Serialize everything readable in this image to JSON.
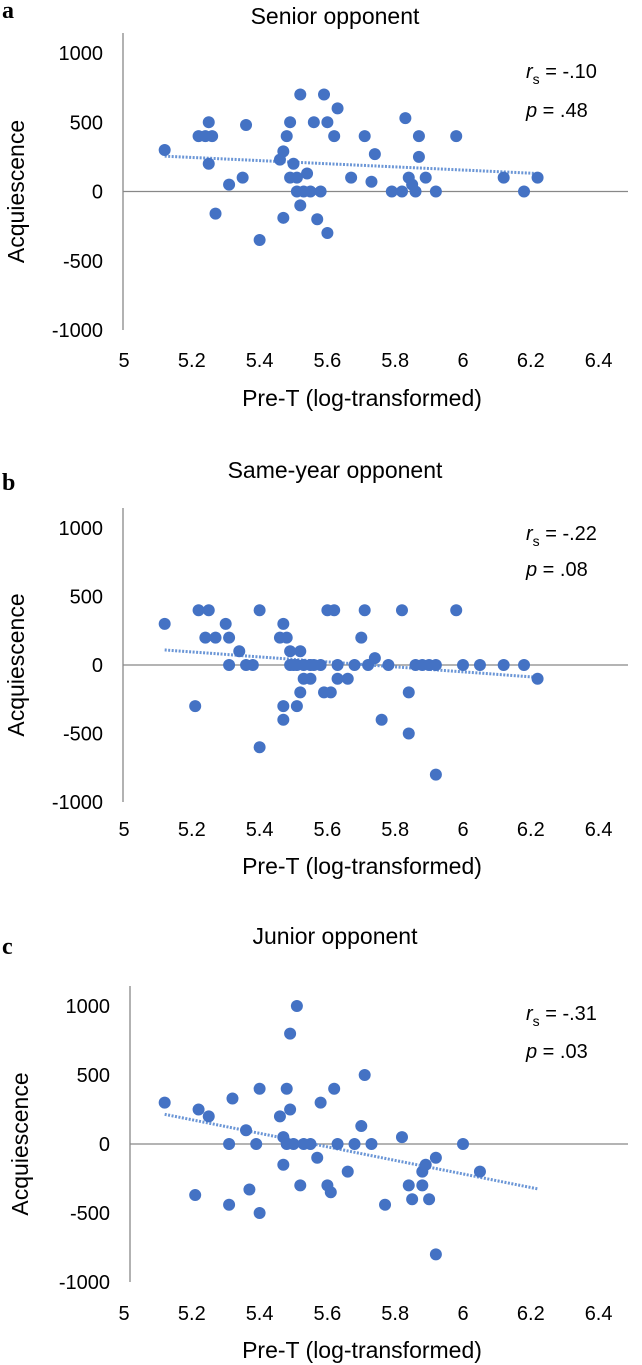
{
  "chart_data": [
    {
      "type": "scatter",
      "panel_label": "a",
      "title": "Senior opponent",
      "xlabel": "Pre-T (log-transformed)",
      "ylabel": "Acquiescence",
      "xlim": [
        5,
        6.5
      ],
      "ylim": [
        -1000,
        1000
      ],
      "xticks": [
        "5",
        "5.2",
        "5.4",
        "5.6",
        "5.8",
        "6",
        "6.2",
        "6.4"
      ],
      "yticks": [
        "1000",
        "500",
        "0",
        "-500",
        "-1000"
      ],
      "stat_r_symbol": "r",
      "stat_r_sub": "s",
      "stat_r_value": " = -.10",
      "stat_p_symbol": "p",
      "stat_p_value": " = .48",
      "trendline": {
        "x": [
          5.12,
          6.22
        ],
        "y": [
          255,
          130
        ]
      },
      "points": [
        [
          5.12,
          300
        ],
        [
          5.22,
          400
        ],
        [
          5.24,
          400
        ],
        [
          5.25,
          500
        ],
        [
          5.26,
          400
        ],
        [
          5.25,
          200
        ],
        [
          5.27,
          -160
        ],
        [
          5.31,
          50
        ],
        [
          5.35,
          100
        ],
        [
          5.36,
          480
        ],
        [
          5.4,
          -350
        ],
        [
          5.46,
          230
        ],
        [
          5.47,
          290
        ],
        [
          5.47,
          -190
        ],
        [
          5.48,
          400
        ],
        [
          5.49,
          500
        ],
        [
          5.49,
          100
        ],
        [
          5.5,
          200
        ],
        [
          5.51,
          100
        ],
        [
          5.51,
          0
        ],
        [
          5.52,
          -100
        ],
        [
          5.53,
          0
        ],
        [
          5.52,
          700
        ],
        [
          5.54,
          130
        ],
        [
          5.55,
          0
        ],
        [
          5.56,
          500
        ],
        [
          5.57,
          -200
        ],
        [
          5.58,
          0
        ],
        [
          5.59,
          700
        ],
        [
          5.6,
          500
        ],
        [
          5.6,
          -300
        ],
        [
          5.62,
          400
        ],
        [
          5.63,
          600
        ],
        [
          5.67,
          100
        ],
        [
          5.71,
          400
        ],
        [
          5.73,
          70
        ],
        [
          5.74,
          270
        ],
        [
          5.79,
          0
        ],
        [
          5.82,
          0
        ],
        [
          5.83,
          530
        ],
        [
          5.84,
          100
        ],
        [
          5.85,
          50
        ],
        [
          5.86,
          0
        ],
        [
          5.87,
          400
        ],
        [
          5.87,
          250
        ],
        [
          5.89,
          100
        ],
        [
          5.92,
          0
        ],
        [
          5.98,
          400
        ],
        [
          6.12,
          100
        ],
        [
          6.18,
          0
        ],
        [
          6.22,
          100
        ]
      ]
    },
    {
      "type": "scatter",
      "panel_label": "b",
      "title": "Same-year opponent",
      "xlabel": "Pre-T (log-transformed)",
      "ylabel": "Acquiescence",
      "xlim": [
        5,
        6.5
      ],
      "ylim": [
        -1000,
        1000
      ],
      "xticks": [
        "5",
        "5.2",
        "5.4",
        "5.6",
        "5.8",
        "6",
        "6.2",
        "6.4"
      ],
      "yticks": [
        "1000",
        "500",
        "0",
        "-500",
        "-1000"
      ],
      "stat_r_symbol": "r",
      "stat_r_sub": "s",
      "stat_r_value": " = -.22",
      "stat_p_symbol": "p",
      "stat_p_value": " = .08",
      "trendline": {
        "x": [
          5.12,
          6.22
        ],
        "y": [
          110,
          -90
        ]
      },
      "points": [
        [
          5.12,
          300
        ],
        [
          5.21,
          -300
        ],
        [
          5.22,
          400
        ],
        [
          5.24,
          200
        ],
        [
          5.25,
          400
        ],
        [
          5.27,
          200
        ],
        [
          5.3,
          300
        ],
        [
          5.31,
          0
        ],
        [
          5.31,
          200
        ],
        [
          5.34,
          100
        ],
        [
          5.36,
          0
        ],
        [
          5.38,
          0
        ],
        [
          5.4,
          400
        ],
        [
          5.4,
          -600
        ],
        [
          5.46,
          200
        ],
        [
          5.47,
          300
        ],
        [
          5.47,
          -300
        ],
        [
          5.47,
          -400
        ],
        [
          5.48,
          200
        ],
        [
          5.49,
          0
        ],
        [
          5.49,
          100
        ],
        [
          5.5,
          0
        ],
        [
          5.51,
          0
        ],
        [
          5.51,
          -300
        ],
        [
          5.52,
          100
        ],
        [
          5.52,
          -200
        ],
        [
          5.53,
          0
        ],
        [
          5.53,
          -100
        ],
        [
          5.55,
          -100
        ],
        [
          5.55,
          0
        ],
        [
          5.56,
          0
        ],
        [
          5.58,
          0
        ],
        [
          5.59,
          -200
        ],
        [
          5.6,
          400
        ],
        [
          5.61,
          -200
        ],
        [
          5.62,
          400
        ],
        [
          5.63,
          -100
        ],
        [
          5.63,
          0
        ],
        [
          5.66,
          -100
        ],
        [
          5.68,
          0
        ],
        [
          5.7,
          200
        ],
        [
          5.71,
          400
        ],
        [
          5.72,
          0
        ],
        [
          5.74,
          50
        ],
        [
          5.76,
          -400
        ],
        [
          5.78,
          0
        ],
        [
          5.82,
          400
        ],
        [
          5.84,
          -200
        ],
        [
          5.84,
          -500
        ],
        [
          5.86,
          0
        ],
        [
          5.88,
          0
        ],
        [
          5.9,
          0
        ],
        [
          5.92,
          -800
        ],
        [
          5.92,
          0
        ],
        [
          5.98,
          400
        ],
        [
          6.0,
          0
        ],
        [
          6.05,
          0
        ],
        [
          6.12,
          0
        ],
        [
          6.18,
          0
        ],
        [
          6.22,
          -100
        ]
      ]
    },
    {
      "type": "scatter",
      "panel_label": "c",
      "title": "Junior opponent",
      "xlabel": "Pre-T (log-transformed)",
      "ylabel": "Acquiescence",
      "xlim": [
        5,
        6.5
      ],
      "ylim": [
        -1000,
        1000
      ],
      "xticks": [
        "5",
        "5.2",
        "5.4",
        "5.6",
        "5.8",
        "6",
        "6.2",
        "6.4"
      ],
      "yticks": [
        "1000",
        "500",
        "0",
        "-500",
        "-1000"
      ],
      "stat_r_symbol": "r",
      "stat_r_sub": "s",
      "stat_r_value": " = -.31",
      "stat_p_symbol": "p",
      "stat_p_value": " = .03",
      "trendline": {
        "x": [
          5.12,
          6.22
        ],
        "y": [
          215,
          -325
        ]
      },
      "points": [
        [
          5.12,
          300
        ],
        [
          5.21,
          -370
        ],
        [
          5.22,
          250
        ],
        [
          5.25,
          200
        ],
        [
          5.31,
          0
        ],
        [
          5.31,
          -440
        ],
        [
          5.32,
          330
        ],
        [
          5.36,
          100
        ],
        [
          5.37,
          -330
        ],
        [
          5.39,
          0
        ],
        [
          5.4,
          400
        ],
        [
          5.4,
          -500
        ],
        [
          5.46,
          200
        ],
        [
          5.47,
          50
        ],
        [
          5.48,
          0
        ],
        [
          5.47,
          -150
        ],
        [
          5.48,
          400
        ],
        [
          5.49,
          800
        ],
        [
          5.49,
          250
        ],
        [
          5.5,
          0
        ],
        [
          5.51,
          1000
        ],
        [
          5.52,
          -300
        ],
        [
          5.53,
          0
        ],
        [
          5.55,
          0
        ],
        [
          5.57,
          -100
        ],
        [
          5.58,
          300
        ],
        [
          5.6,
          -300
        ],
        [
          5.61,
          -350
        ],
        [
          5.62,
          400
        ],
        [
          5.63,
          0
        ],
        [
          5.66,
          -200
        ],
        [
          5.68,
          0
        ],
        [
          5.7,
          130
        ],
        [
          5.71,
          500
        ],
        [
          5.73,
          0
        ],
        [
          5.77,
          -440
        ],
        [
          5.82,
          50
        ],
        [
          5.84,
          -300
        ],
        [
          5.85,
          -400
        ],
        [
          5.88,
          -200
        ],
        [
          5.88,
          -300
        ],
        [
          5.89,
          -150
        ],
        [
          5.9,
          -400
        ],
        [
          5.92,
          -100
        ],
        [
          5.92,
          -800
        ],
        [
          6.0,
          0
        ],
        [
          6.05,
          -200
        ]
      ]
    }
  ]
}
